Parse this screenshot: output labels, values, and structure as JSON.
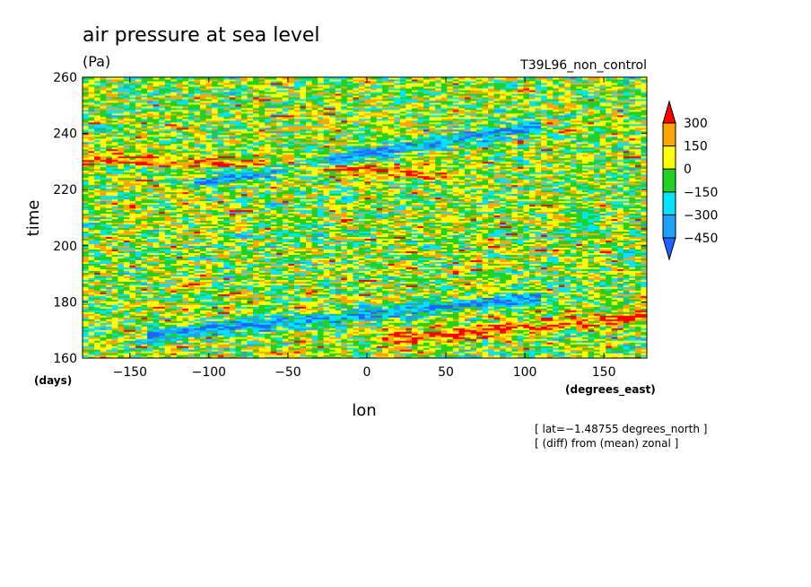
{
  "chart_data": {
    "type": "heatmap",
    "title": "air pressure at sea level",
    "subtitle": "(Pa)",
    "experiment": "T39L96_non_control",
    "xlabel": "lon",
    "ylabel": "time",
    "x_units": "(degrees_east)",
    "y_units": "(days)",
    "xlim": [
      -180,
      177.1875
    ],
    "ylim": [
      160,
      260
    ],
    "x_ticks": [
      -150,
      -100,
      -50,
      0,
      50,
      100,
      150
    ],
    "x_tick_labels": [
      "−150",
      "−100",
      "−50",
      "0",
      "50",
      "100",
      "150"
    ],
    "y_ticks": [
      160,
      180,
      200,
      220,
      240,
      260
    ],
    "y_tick_labels": [
      "160",
      "180",
      "200",
      "220",
      "240",
      "260"
    ],
    "grid": false,
    "colorbar": {
      "levels": [
        -450,
        -300,
        -150,
        0,
        150,
        300
      ],
      "labels": [
        "−450",
        "−300",
        "−150",
        "0",
        "150",
        "300"
      ],
      "colors": [
        "#1e64ff",
        "#1ea0ff",
        "#00e5ff",
        "#21d321",
        "#ffff00",
        "#ffa500",
        "#ff0000"
      ],
      "extend": "both"
    },
    "annotations": [
      "[ lat=−1.48755 degrees_north ]",
      "[ (diff) from (mean) zonal ]"
    ],
    "features": [
      {
        "description": "negative anomaly band",
        "value_level": -450,
        "lon_start": -80,
        "time_start": 225,
        "lon_end": 80,
        "time_end": 240
      },
      {
        "description": "positive anomaly band",
        "value_level": 300,
        "lon_start": -180,
        "time_start": 232,
        "lon_end": 20,
        "time_end": 227
      },
      {
        "description": "negative anomaly band",
        "value_level": -450,
        "lon_start": -110,
        "time_start": 170,
        "lon_end": 80,
        "time_end": 180
      },
      {
        "description": "positive anomaly band",
        "value_level": 300,
        "lon_start": 40,
        "time_start": 168,
        "lon_end": 175,
        "time_end": 175
      }
    ]
  }
}
